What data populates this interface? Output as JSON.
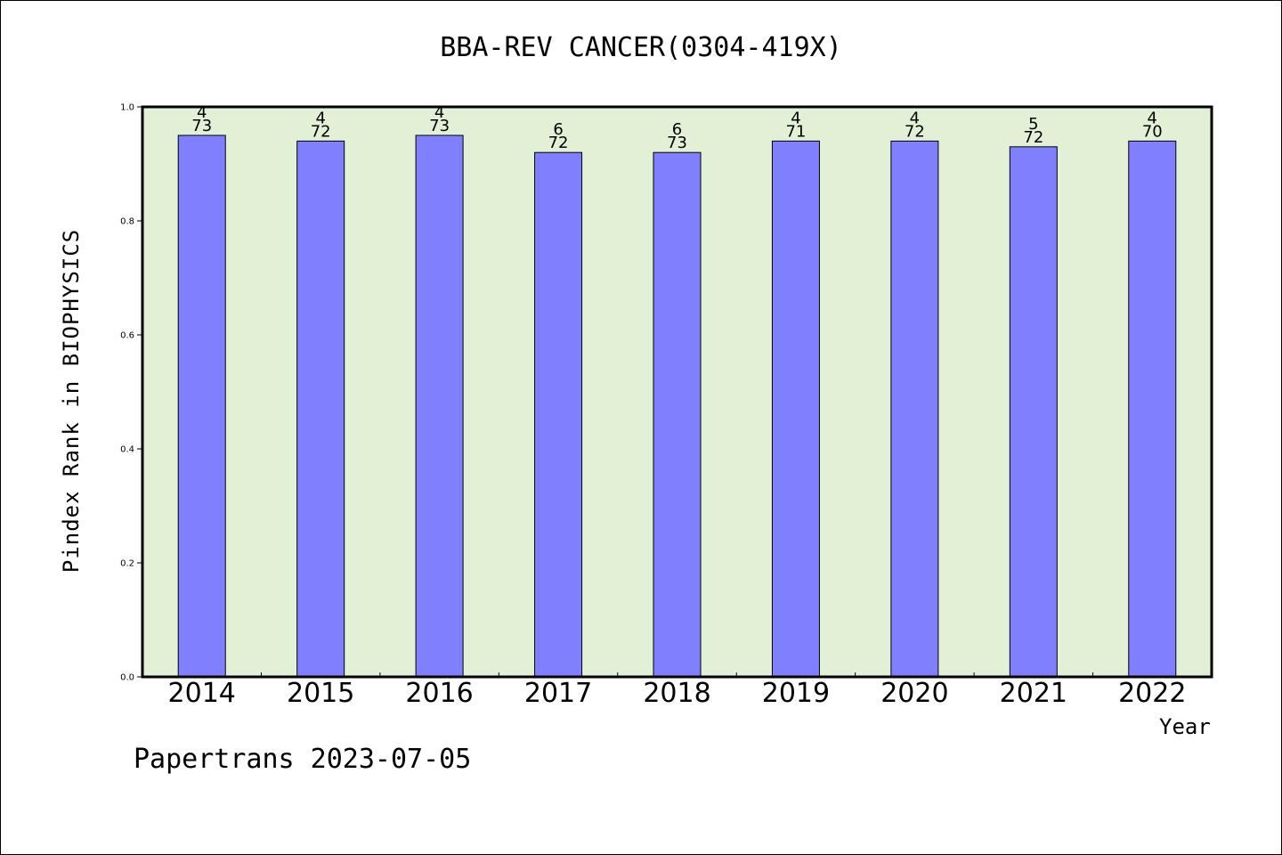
{
  "chart_data": {
    "type": "bar",
    "title": "BBA-REV CANCER(0304-419X)",
    "xlabel": "Year",
    "ylabel": "Pindex Rank in BIOPHYSICS",
    "ylim": [
      0,
      1
    ],
    "yticks": [
      "0.0",
      "0.2",
      "0.4",
      "0.6",
      "0.8",
      "1.0"
    ],
    "categories": [
      "2014",
      "2015",
      "2016",
      "2017",
      "2018",
      "2019",
      "2020",
      "2021",
      "2022"
    ],
    "values": [
      0.95,
      0.94,
      0.95,
      0.92,
      0.92,
      0.94,
      0.94,
      0.93,
      0.94
    ],
    "rank": [
      "4",
      "4",
      "4",
      "6",
      "6",
      "4",
      "4",
      "5",
      "4"
    ],
    "total": [
      "73",
      "72",
      "73",
      "72",
      "73",
      "71",
      "72",
      "72",
      "70"
    ],
    "bar_color": "#8080ff",
    "plot_background": "#e2f0d6",
    "grid": false
  },
  "footer": "Papertrans 2023-07-05"
}
